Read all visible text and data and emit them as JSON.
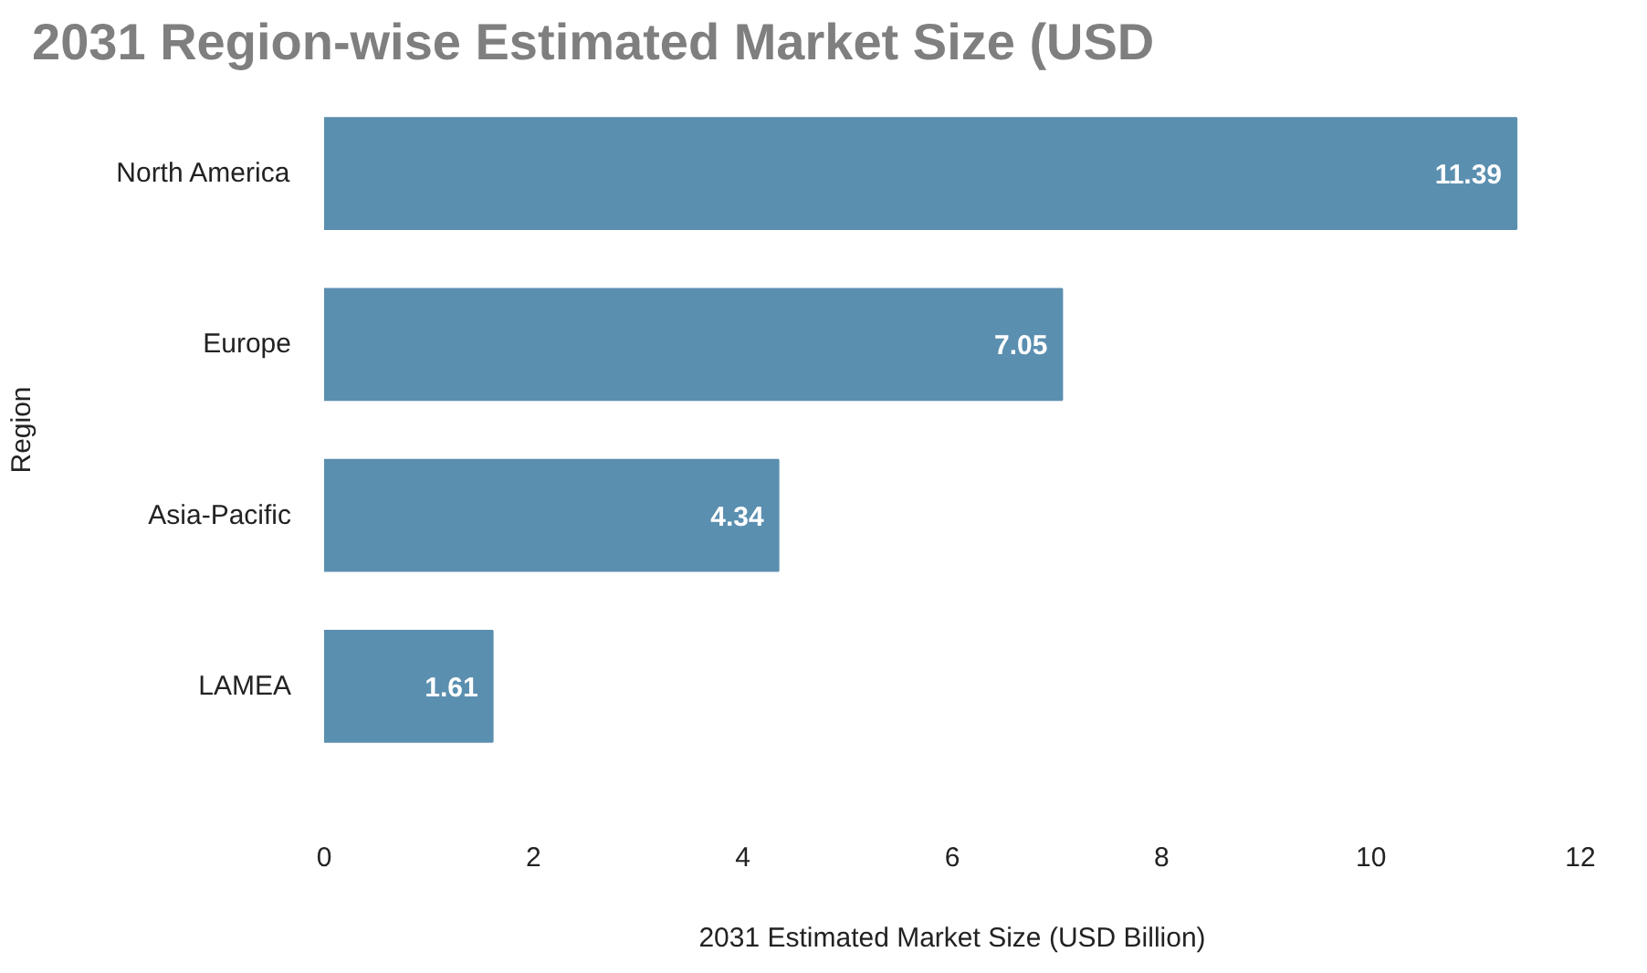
{
  "chart_data": {
    "type": "bar",
    "orientation": "horizontal",
    "title": "2031 Region-wise Estimated Market Size (USD",
    "xlabel": "2031 Estimated Market Size (USD Billion)",
    "ylabel": "Region",
    "categories": [
      "North America",
      "Europe",
      "Asia-Pacific",
      "LAMEA"
    ],
    "values": [
      11.39,
      7.05,
      4.34,
      1.61
    ],
    "color": "#5b8fb0",
    "xlim": [
      0,
      12
    ],
    "xticks": [
      0,
      2,
      4,
      6,
      8,
      10,
      12
    ],
    "data_labels": true,
    "grid": false
  }
}
